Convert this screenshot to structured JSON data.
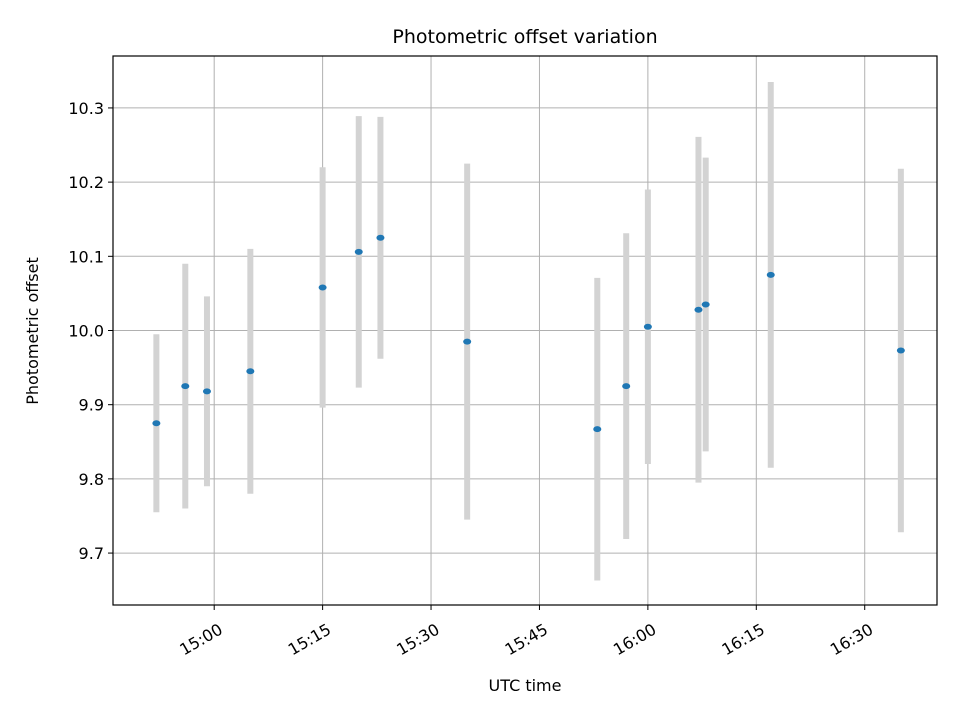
{
  "chart_data": {
    "type": "scatter",
    "title": "Photometric offset variation",
    "xlabel": "UTC time",
    "ylabel": "Photometric offset",
    "x_tick_labels": [
      "15:00",
      "15:15",
      "15:30",
      "15:45",
      "16:00",
      "16:15",
      "16:30"
    ],
    "y_tick_labels": [
      "9.7",
      "9.8",
      "9.9",
      "10.0",
      "10.1",
      "10.2",
      "10.3"
    ],
    "y_ticks": [
      9.7,
      9.8,
      9.9,
      10.0,
      10.1,
      10.2,
      10.3
    ],
    "xlim": [
      "14:46",
      "16:40"
    ],
    "ylim": [
      9.63,
      10.37
    ],
    "grid": true,
    "point_color": "#1f77b4",
    "errorbar_color": "#d3d3d3",
    "series": [
      {
        "x": [
          "14:52",
          "14:56",
          "14:59",
          "15:05",
          "15:15",
          "15:20",
          "15:23",
          "15:35",
          "15:53",
          "15:57",
          "16:00",
          "16:07",
          "16:08",
          "16:17",
          "16:35"
        ],
        "y": [
          9.875,
          9.925,
          9.918,
          9.945,
          10.058,
          10.106,
          10.125,
          9.985,
          9.867,
          9.925,
          10.005,
          10.028,
          10.035,
          10.075,
          9.973
        ],
        "error": [
          0.12,
          0.165,
          0.128,
          0.165,
          0.162,
          0.183,
          0.163,
          0.24,
          0.204,
          0.206,
          0.185,
          0.233,
          0.198,
          0.26,
          0.245
        ]
      }
    ]
  }
}
